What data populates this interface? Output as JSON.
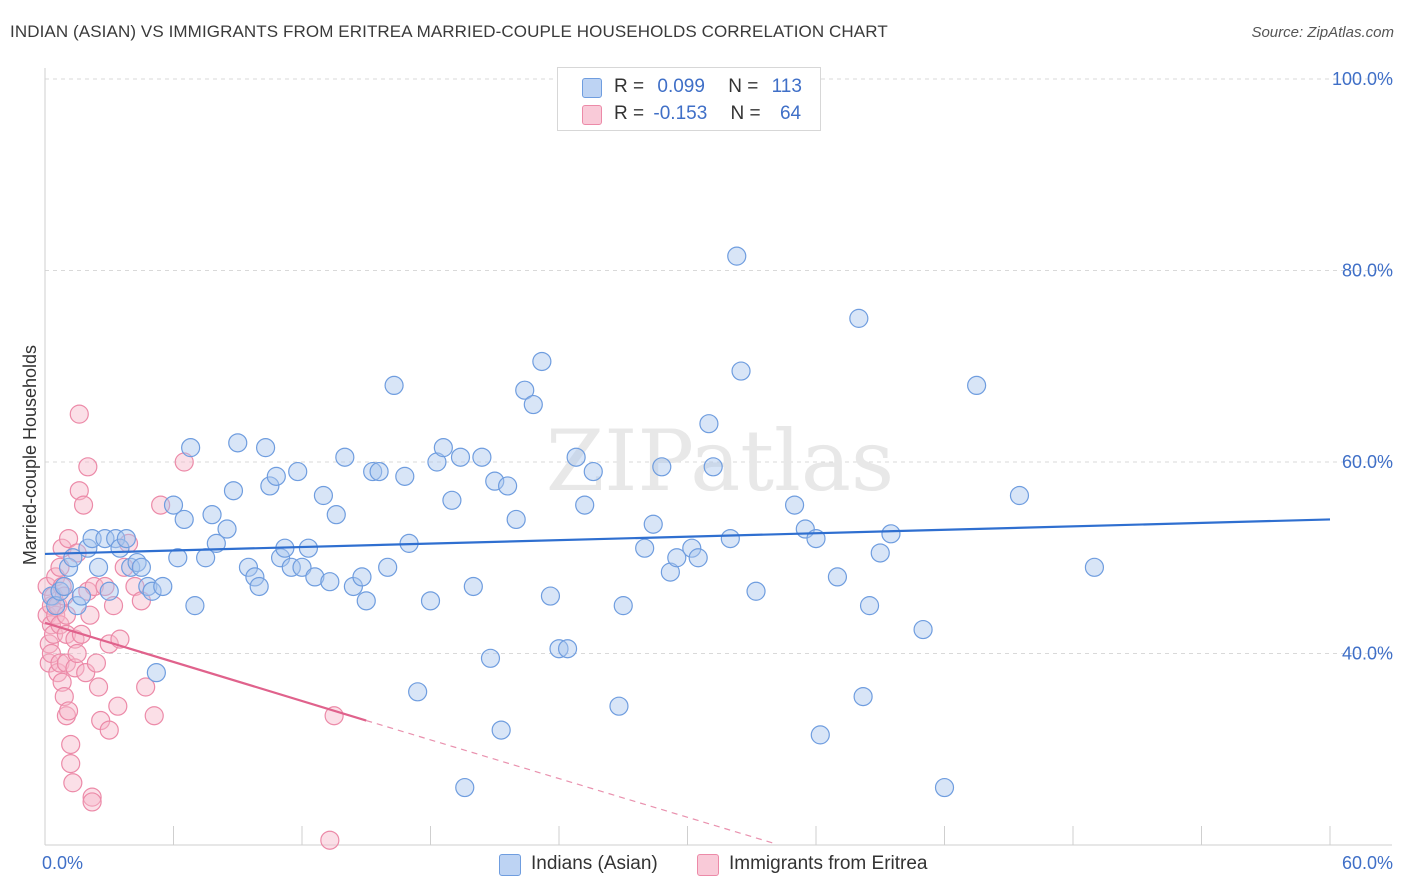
{
  "title": "INDIAN (ASIAN) VS IMMIGRANTS FROM ERITREA MARRIED-COUPLE HOUSEHOLDS CORRELATION CHART",
  "source": "Source: ZipAtlas.com",
  "watermark": "ZIPatlas",
  "legend": {
    "rows": [
      {
        "r_label": "R =",
        "r_value": "0.099",
        "n_label": "N =",
        "n_value": "113"
      },
      {
        "r_label": "R =",
        "r_value": "-0.153",
        "n_label": "N =",
        "n_value": "64"
      }
    ]
  },
  "colors": {
    "blue_fill": "#a9c6ee",
    "blue_stroke": "#6f9ddf",
    "blue_line": "#2f6fd0",
    "pink_fill": "#f6b7c9",
    "pink_stroke": "#ec8aa8",
    "pink_line": "#e0628c",
    "label": "#3f6fc7",
    "grid": "#d9d9d9"
  },
  "chart_data": {
    "type": "scatter",
    "title": "INDIAN (ASIAN) VS IMMIGRANTS FROM ERITREA MARRIED-COUPLE HOUSEHOLDS CORRELATION CHART",
    "ylabel": "Married-couple Households",
    "xlim": [
      0,
      60
    ],
    "ylim": [
      20,
      100
    ],
    "x_tick_labels": [
      "0.0%",
      "60.0%"
    ],
    "y_tick_labels": [
      "100.0%",
      "80.0%",
      "60.0%",
      "40.0%"
    ],
    "y_ticks": [
      100,
      80,
      60,
      40
    ],
    "series": [
      {
        "name": "Indians (Asian)",
        "r": 0.099,
        "n": 113,
        "trend": {
          "x0": 0,
          "y0": 50.4,
          "x1": 60,
          "y1": 54.0
        },
        "points": [
          [
            0.3,
            46
          ],
          [
            0.5,
            45
          ],
          [
            0.7,
            46.5
          ],
          [
            0.9,
            47
          ],
          [
            1.1,
            49
          ],
          [
            1.3,
            50
          ],
          [
            1.5,
            45
          ],
          [
            1.7,
            46
          ],
          [
            2,
            51
          ],
          [
            2.2,
            52
          ],
          [
            2.5,
            49
          ],
          [
            2.8,
            52
          ],
          [
            3,
            46.5
          ],
          [
            3.3,
            52
          ],
          [
            3.5,
            51
          ],
          [
            3.8,
            52
          ],
          [
            4,
            49
          ],
          [
            4.3,
            49.5
          ],
          [
            4.5,
            49
          ],
          [
            4.8,
            47
          ],
          [
            5,
            46.5
          ],
          [
            5.2,
            38
          ],
          [
            5.5,
            47
          ],
          [
            6,
            55.5
          ],
          [
            6.2,
            50
          ],
          [
            6.5,
            54
          ],
          [
            6.8,
            61.5
          ],
          [
            7,
            45
          ],
          [
            7.5,
            50
          ],
          [
            7.8,
            54.5
          ],
          [
            8,
            51.5
          ],
          [
            8.5,
            53
          ],
          [
            8.8,
            57
          ],
          [
            9,
            62
          ],
          [
            9.5,
            49
          ],
          [
            9.8,
            48
          ],
          [
            10,
            47
          ],
          [
            10.3,
            61.5
          ],
          [
            10.5,
            57.5
          ],
          [
            10.8,
            58.5
          ],
          [
            11,
            50
          ],
          [
            11.2,
            51
          ],
          [
            11.5,
            49
          ],
          [
            11.8,
            59
          ],
          [
            12,
            49
          ],
          [
            12.3,
            51
          ],
          [
            12.6,
            48
          ],
          [
            13,
            56.5
          ],
          [
            13.3,
            47.5
          ],
          [
            13.6,
            54.5
          ],
          [
            14,
            60.5
          ],
          [
            14.4,
            47
          ],
          [
            14.8,
            48
          ],
          [
            15,
            45.5
          ],
          [
            15.3,
            59
          ],
          [
            15.6,
            59
          ],
          [
            16,
            49
          ],
          [
            16.3,
            68
          ],
          [
            16.8,
            58.5
          ],
          [
            17,
            51.5
          ],
          [
            17.4,
            36
          ],
          [
            18,
            45.5
          ],
          [
            18.3,
            60
          ],
          [
            18.6,
            61.5
          ],
          [
            19,
            56
          ],
          [
            19.4,
            60.5
          ],
          [
            19.6,
            26
          ],
          [
            20,
            47
          ],
          [
            20.4,
            60.5
          ],
          [
            20.8,
            39.5
          ],
          [
            21,
            58
          ],
          [
            21.3,
            32
          ],
          [
            21.6,
            57.5
          ],
          [
            22,
            54
          ],
          [
            22.4,
            67.5
          ],
          [
            22.8,
            66
          ],
          [
            23.2,
            70.5
          ],
          [
            23.6,
            46
          ],
          [
            24,
            40.5
          ],
          [
            24.4,
            40.5
          ],
          [
            24.8,
            60.5
          ],
          [
            25.2,
            55.5
          ],
          [
            25.6,
            59
          ],
          [
            26.8,
            34.5
          ],
          [
            27,
            45
          ],
          [
            28,
            51
          ],
          [
            28.4,
            53.5
          ],
          [
            28.8,
            59.5
          ],
          [
            29.2,
            48.5
          ],
          [
            29.5,
            50
          ],
          [
            30.2,
            51
          ],
          [
            30.5,
            50
          ],
          [
            31,
            64
          ],
          [
            31.2,
            59.5
          ],
          [
            32,
            52
          ],
          [
            32.3,
            81.5
          ],
          [
            32.5,
            69.5
          ],
          [
            33.2,
            46.5
          ],
          [
            35,
            55.5
          ],
          [
            35.5,
            53
          ],
          [
            36,
            52
          ],
          [
            36.2,
            31.5
          ],
          [
            37,
            48
          ],
          [
            38,
            75
          ],
          [
            38.2,
            35.5
          ],
          [
            38.5,
            45
          ],
          [
            39,
            50.5
          ],
          [
            39.5,
            52.5
          ],
          [
            41,
            42.5
          ],
          [
            42,
            26
          ],
          [
            43.5,
            68
          ],
          [
            45.5,
            56.5
          ],
          [
            49,
            49
          ]
        ]
      },
      {
        "name": "Immigrants from Eritrea",
        "r": -0.153,
        "n": 64,
        "trend": {
          "x0": 0,
          "y0": 43.2,
          "x1": 15,
          "y1": 33.0
        },
        "trend_dashed": {
          "x0": 15,
          "y0": 33.0,
          "x1": 34,
          "y1": 20.2
        },
        "points": [
          [
            0.1,
            47
          ],
          [
            0.1,
            44
          ],
          [
            0.2,
            41
          ],
          [
            0.2,
            39
          ],
          [
            0.3,
            45
          ],
          [
            0.3,
            43
          ],
          [
            0.3,
            40
          ],
          [
            0.4,
            46
          ],
          [
            0.4,
            42
          ],
          [
            0.5,
            48
          ],
          [
            0.5,
            44
          ],
          [
            0.6,
            38
          ],
          [
            0.6,
            45
          ],
          [
            0.7,
            49
          ],
          [
            0.7,
            43
          ],
          [
            0.7,
            39
          ],
          [
            0.8,
            51
          ],
          [
            0.8,
            47
          ],
          [
            0.8,
            37
          ],
          [
            0.9,
            46
          ],
          [
            0.9,
            35.5
          ],
          [
            1,
            44
          ],
          [
            1,
            42
          ],
          [
            1,
            39
          ],
          [
            1,
            33.5
          ],
          [
            1.1,
            52
          ],
          [
            1.1,
            34
          ],
          [
            1.2,
            30.5
          ],
          [
            1.2,
            28.5
          ],
          [
            1.3,
            26.5
          ],
          [
            1.4,
            41.5
          ],
          [
            1.4,
            38.5
          ],
          [
            1.5,
            50.5
          ],
          [
            1.5,
            40
          ],
          [
            1.6,
            65
          ],
          [
            1.6,
            57
          ],
          [
            1.7,
            42
          ],
          [
            1.8,
            55.5
          ],
          [
            1.9,
            38
          ],
          [
            2,
            59.5
          ],
          [
            2,
            46.5
          ],
          [
            2.1,
            44
          ],
          [
            2.2,
            25
          ],
          [
            2.2,
            24.5
          ],
          [
            2.3,
            47
          ],
          [
            2.4,
            39
          ],
          [
            2.5,
            36.5
          ],
          [
            2.6,
            33
          ],
          [
            2.8,
            47
          ],
          [
            3,
            41
          ],
          [
            3,
            32
          ],
          [
            3.2,
            45
          ],
          [
            3.4,
            34.5
          ],
          [
            3.5,
            41.5
          ],
          [
            3.7,
            49
          ],
          [
            3.9,
            51.5
          ],
          [
            4.2,
            47
          ],
          [
            4.5,
            45.5
          ],
          [
            4.7,
            36.5
          ],
          [
            5.1,
            33.5
          ],
          [
            5.4,
            55.5
          ],
          [
            6.5,
            60
          ],
          [
            13.5,
            33.5
          ],
          [
            13.3,
            20.5
          ]
        ]
      }
    ]
  }
}
